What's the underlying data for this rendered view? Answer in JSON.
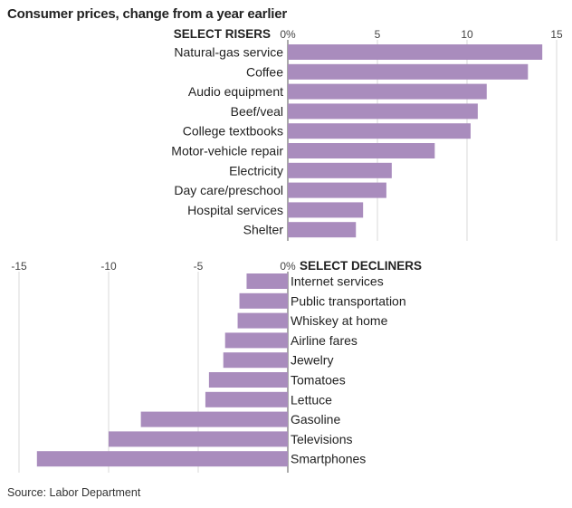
{
  "title": "Consumer prices, change from a year earlier",
  "source": "Source: Labor Department",
  "colors": {
    "bar": "#a98cbd",
    "axis": "#888888",
    "text": "#222222"
  },
  "chart_data": [
    {
      "type": "bar",
      "orientation": "horizontal",
      "title": "SELECT RISERS",
      "tick_labels": [
        "0%",
        "5",
        "10",
        "15"
      ],
      "ticks": [
        0,
        5,
        10,
        15
      ],
      "xlim": [
        0,
        15
      ],
      "grid": true,
      "categories": [
        "Natural-gas service",
        "Coffee",
        "Audio equipment",
        "Beef/veal",
        "College textbooks",
        "Motor-vehicle repair",
        "Electricity",
        "Day care/preschool",
        "Hospital services",
        "Shelter"
      ],
      "values": [
        14.2,
        13.4,
        11.1,
        10.6,
        10.2,
        8.2,
        5.8,
        5.5,
        4.2,
        3.8
      ]
    },
    {
      "type": "bar",
      "orientation": "horizontal",
      "title": "SELECT DECLINERS",
      "tick_labels": [
        "-15",
        "-10",
        "-5",
        "0%"
      ],
      "ticks": [
        -15,
        -10,
        -5,
        0
      ],
      "xlim": [
        -15,
        0
      ],
      "grid": true,
      "categories": [
        "Internet services",
        "Public transportation",
        "Whiskey at home",
        "Airline fares",
        "Jewelry",
        "Tomatoes",
        "Lettuce",
        "Gasoline",
        "Televisions",
        "Smartphones"
      ],
      "values": [
        -2.3,
        -2.7,
        -2.8,
        -3.5,
        -3.6,
        -4.4,
        -4.6,
        -8.2,
        -10.0,
        -14.0
      ]
    }
  ]
}
